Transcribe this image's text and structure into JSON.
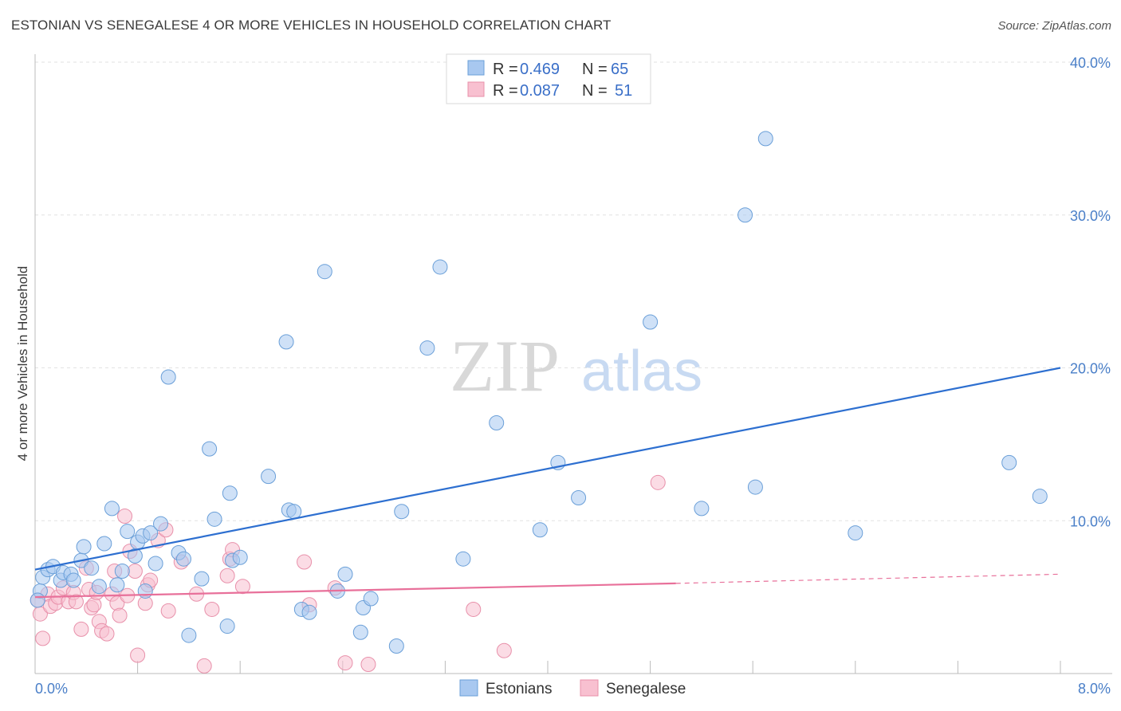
{
  "title": "ESTONIAN VS SENEGALESE 4 OR MORE VEHICLES IN HOUSEHOLD CORRELATION CHART",
  "source": "Source: ZipAtlas.com",
  "watermark": {
    "zip": "ZIP",
    "atlas": "atlas"
  },
  "legend": {
    "r_label": "R =",
    "n_label": "N =",
    "rows": [
      {
        "r": "0.469",
        "n": "65",
        "color": "#a8c8f0",
        "stroke": "#6a9fd8"
      },
      {
        "r": "0.087",
        "n": "51",
        "color": "#f8c0d0",
        "stroke": "#e890aa"
      }
    ]
  },
  "bottom_legend": [
    "Estonians",
    "Senegalese"
  ],
  "chart_data": {
    "type": "scatter",
    "title": "ESTONIAN VS SENEGALESE 4 OR MORE VEHICLES IN HOUSEHOLD CORRELATION CHART",
    "xlabel": "",
    "ylabel": "4 or more Vehicles in Household",
    "xlim": [
      0,
      8
    ],
    "ylim": [
      0,
      40
    ],
    "x_tick_labels": [
      "0.0%",
      "8.0%"
    ],
    "y_ticks": [
      10,
      20,
      30,
      40
    ],
    "y_tick_labels": [
      "10.0%",
      "20.0%",
      "30.0%",
      "40.0%"
    ],
    "grid": true,
    "legend_position": "top-center",
    "series": [
      {
        "name": "Estonians",
        "color": "#a8c8f0",
        "stroke": "#6a9fd8",
        "line_color": "#2d6fd0",
        "trend": {
          "x": [
            0,
            8
          ],
          "y": [
            6.8,
            20.0
          ]
        },
        "points": [
          [
            0.04,
            5.4
          ],
          [
            0.06,
            6.3
          ],
          [
            0.1,
            6.8
          ],
          [
            0.14,
            7.0
          ],
          [
            0.2,
            6.1
          ],
          [
            0.22,
            6.6
          ],
          [
            0.28,
            6.5
          ],
          [
            0.36,
            7.4
          ],
          [
            0.38,
            8.3
          ],
          [
            0.44,
            6.9
          ],
          [
            0.5,
            5.7
          ],
          [
            0.54,
            8.5
          ],
          [
            0.6,
            10.8
          ],
          [
            0.64,
            5.8
          ],
          [
            0.68,
            6.7
          ],
          [
            0.72,
            9.3
          ],
          [
            0.78,
            7.7
          ],
          [
            0.8,
            8.6
          ],
          [
            0.84,
            9.0
          ],
          [
            0.86,
            5.4
          ],
          [
            0.9,
            9.2
          ],
          [
            0.94,
            7.2
          ],
          [
            0.98,
            9.8
          ],
          [
            1.04,
            19.4
          ],
          [
            1.12,
            7.9
          ],
          [
            1.16,
            7.5
          ],
          [
            1.2,
            2.5
          ],
          [
            1.3,
            6.2
          ],
          [
            1.36,
            14.7
          ],
          [
            1.4,
            10.1
          ],
          [
            1.5,
            3.1
          ],
          [
            1.52,
            11.8
          ],
          [
            1.54,
            7.4
          ],
          [
            1.6,
            7.6
          ],
          [
            1.82,
            12.9
          ],
          [
            1.96,
            21.7
          ],
          [
            1.98,
            10.7
          ],
          [
            2.02,
            10.6
          ],
          [
            2.08,
            4.2
          ],
          [
            2.14,
            4.0
          ],
          [
            2.26,
            26.3
          ],
          [
            2.36,
            5.4
          ],
          [
            2.42,
            6.5
          ],
          [
            2.56,
            4.3
          ],
          [
            2.54,
            2.7
          ],
          [
            2.62,
            4.9
          ],
          [
            2.82,
            1.8
          ],
          [
            2.86,
            10.6
          ],
          [
            3.06,
            21.3
          ],
          [
            3.16,
            26.6
          ],
          [
            3.34,
            7.5
          ],
          [
            3.6,
            16.4
          ],
          [
            3.94,
            9.4
          ],
          [
            4.08,
            13.8
          ],
          [
            4.24,
            11.5
          ],
          [
            4.8,
            23.0
          ],
          [
            5.2,
            10.8
          ],
          [
            5.54,
            30.0
          ],
          [
            5.62,
            12.2
          ],
          [
            5.7,
            35.0
          ],
          [
            6.4,
            9.2
          ],
          [
            7.6,
            13.8
          ],
          [
            7.84,
            11.6
          ],
          [
            0.02,
            4.8
          ],
          [
            0.3,
            6.1
          ]
        ]
      },
      {
        "name": "Senegalese",
        "color": "#f8c0d0",
        "stroke": "#e890aa",
        "line_color": "#e8709a",
        "trend": {
          "x": [
            0,
            5.0
          ],
          "y": [
            5.0,
            5.9
          ]
        },
        "trend_dashed": {
          "x": [
            5.0,
            8
          ],
          "y": [
            5.9,
            6.5
          ]
        },
        "points": [
          [
            0.02,
            4.8
          ],
          [
            0.04,
            3.9
          ],
          [
            0.06,
            2.3
          ],
          [
            0.1,
            5.2
          ],
          [
            0.12,
            4.4
          ],
          [
            0.16,
            4.6
          ],
          [
            0.18,
            5.0
          ],
          [
            0.22,
            5.6
          ],
          [
            0.26,
            4.7
          ],
          [
            0.3,
            5.3
          ],
          [
            0.32,
            4.7
          ],
          [
            0.36,
            2.9
          ],
          [
            0.4,
            6.9
          ],
          [
            0.42,
            5.5
          ],
          [
            0.44,
            4.3
          ],
          [
            0.46,
            4.5
          ],
          [
            0.48,
            5.3
          ],
          [
            0.5,
            3.4
          ],
          [
            0.52,
            2.8
          ],
          [
            0.56,
            2.6
          ],
          [
            0.6,
            5.2
          ],
          [
            0.62,
            6.7
          ],
          [
            0.64,
            4.6
          ],
          [
            0.66,
            3.8
          ],
          [
            0.7,
            10.3
          ],
          [
            0.72,
            5.1
          ],
          [
            0.74,
            8.0
          ],
          [
            0.78,
            6.7
          ],
          [
            0.8,
            1.2
          ],
          [
            0.86,
            4.6
          ],
          [
            0.88,
            5.8
          ],
          [
            0.9,
            6.1
          ],
          [
            0.96,
            8.7
          ],
          [
            1.02,
            9.4
          ],
          [
            1.04,
            4.1
          ],
          [
            1.14,
            7.3
          ],
          [
            1.26,
            5.2
          ],
          [
            1.32,
            0.5
          ],
          [
            1.38,
            4.2
          ],
          [
            1.5,
            6.4
          ],
          [
            1.52,
            7.5
          ],
          [
            1.62,
            5.7
          ],
          [
            2.1,
            7.3
          ],
          [
            2.14,
            4.5
          ],
          [
            2.34,
            5.6
          ],
          [
            2.42,
            0.7
          ],
          [
            2.6,
            0.6
          ],
          [
            3.42,
            4.2
          ],
          [
            3.66,
            1.5
          ],
          [
            4.86,
            12.5
          ],
          [
            1.54,
            8.1
          ]
        ]
      }
    ]
  }
}
